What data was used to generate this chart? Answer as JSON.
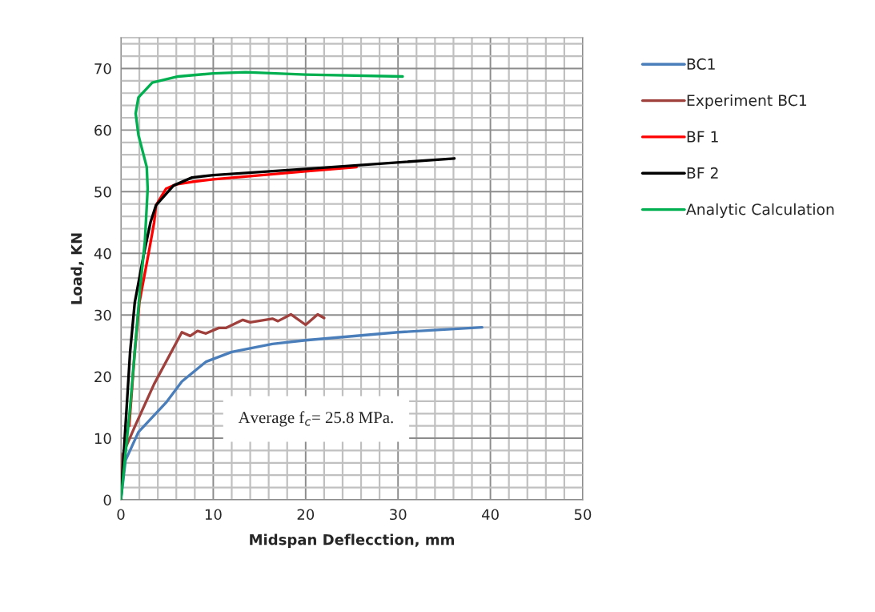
{
  "chart_data": {
    "type": "line",
    "xlabel": "Midspan Deflecction, mm",
    "ylabel": "Load, KN",
    "xlim": [
      0,
      50
    ],
    "ylim": [
      0,
      75
    ],
    "xticks": [
      0,
      {
        "value": 2,
        "label": null
      },
      {
        "value": 4,
        "label": null
      },
      {
        "value": 6,
        "label": null
      },
      {
        "value": 8,
        "label": null
      },
      10,
      {
        "value": 12,
        "label": null
      },
      {
        "value": 14,
        "label": null
      },
      {
        "value": 16,
        "label": null
      },
      {
        "value": 18,
        "label": null
      },
      20,
      {
        "value": 22,
        "label": null
      },
      {
        "value": 24,
        "label": null
      },
      {
        "value": 26,
        "label": null
      },
      {
        "value": 28,
        "label": null
      },
      30,
      {
        "value": 32,
        "label": null
      },
      {
        "value": 34,
        "label": null
      },
      {
        "value": 36,
        "label": null
      },
      {
        "value": 38,
        "label": null
      },
      40,
      {
        "value": 42,
        "label": null
      },
      {
        "value": 44,
        "label": null
      },
      {
        "value": 46,
        "label": null
      },
      {
        "value": 48,
        "label": null
      },
      50
    ],
    "yticks": [
      0,
      {
        "value": 2,
        "label": null
      },
      {
        "value": 4,
        "label": null
      },
      {
        "value": 6,
        "label": null
      },
      {
        "value": 8,
        "label": null
      },
      10,
      {
        "value": 12,
        "label": null
      },
      {
        "value": 14,
        "label": null
      },
      {
        "value": 16,
        "label": null
      },
      {
        "value": 18,
        "label": null
      },
      20,
      {
        "value": 22,
        "label": null
      },
      {
        "value": 24,
        "label": null
      },
      {
        "value": 26,
        "label": null
      },
      {
        "value": 28,
        "label": null
      },
      30,
      {
        "value": 32,
        "label": null
      },
      {
        "value": 34,
        "label": null
      },
      {
        "value": 36,
        "label": null
      },
      {
        "value": 38,
        "label": null
      },
      40,
      {
        "value": 42,
        "label": null
      },
      {
        "value": 44,
        "label": null
      },
      {
        "value": 46,
        "label": null
      },
      {
        "value": 48,
        "label": null
      },
      50,
      {
        "value": 52,
        "label": null
      },
      {
        "value": 54,
        "label": null
      },
      {
        "value": 56,
        "label": null
      },
      {
        "value": 58,
        "label": null
      },
      60,
      {
        "value": 62,
        "label": null
      },
      {
        "value": 64,
        "label": null
      },
      {
        "value": 66,
        "label": null
      },
      {
        "value": 68,
        "label": null
      },
      70,
      {
        "value": 72,
        "label": null
      },
      {
        "value": 74,
        "label": null
      }
    ],
    "grid": true,
    "legend": "right",
    "marker": "none",
    "line_style": "solid",
    "annotations": [
      "Average f$_{c}$= 25.8 MPa."
    ],
    "series": [
      {
        "name": "BC1",
        "color": "#4a7ebb",
        "x": [
          0,
          0.5,
          1.9,
          4.9,
          6.6,
          9.2,
          12,
          16.4,
          20,
          30,
          39.1
        ],
        "values": [
          0,
          6.4,
          11,
          15.8,
          19.2,
          22.4,
          24,
          25.3,
          25.9,
          27.2,
          28
        ]
      },
      {
        "name": "Experiment BC1",
        "color": "#a0403d",
        "x": [
          0,
          0.2,
          1.6,
          3.6,
          6.6,
          7.5,
          8.3,
          9.2,
          10.6,
          11.4,
          13.2,
          14,
          16.4,
          17,
          18.4,
          20,
          21.3,
          22
        ],
        "values": [
          0,
          7.4,
          12.2,
          18.8,
          27.2,
          26.6,
          27.4,
          27,
          27.9,
          27.9,
          29.2,
          28.8,
          29.4,
          29,
          30.1,
          28.4,
          30.1,
          29.5
        ]
      },
      {
        "name": "BF 1",
        "color": "#ff0000",
        "x": [
          0.9,
          1.5,
          2,
          3,
          3.6,
          3.8,
          4.9,
          6,
          7.7,
          10,
          20,
          25.5
        ],
        "values": [
          12,
          24,
          32,
          40,
          45,
          47.8,
          50.5,
          51.2,
          51.6,
          52,
          53.3,
          54
        ]
      },
      {
        "name": "BF 2",
        "color": "#000000",
        "x": [
          0,
          0.5,
          1,
          1.5,
          2.5,
          3.2,
          3.8,
          5.7,
          7.7,
          10,
          20,
          36.1
        ],
        "values": [
          0,
          12,
          24,
          32,
          40,
          45,
          47.8,
          51,
          52.3,
          52.7,
          53.7,
          55.4
        ]
      },
      {
        "name": "Analytic Calculation",
        "color": "#00b050",
        "x": [
          0,
          1,
          2,
          2.6,
          2.9,
          2.8,
          1.9,
          1.6,
          1.9,
          3.4,
          6.2,
          10,
          13.5,
          20,
          30.5
        ],
        "values": [
          0,
          15,
          33,
          42,
          50.5,
          54,
          59.2,
          62.7,
          65.3,
          67.7,
          68.7,
          69.2,
          69.4,
          69,
          68.7
        ]
      }
    ]
  }
}
